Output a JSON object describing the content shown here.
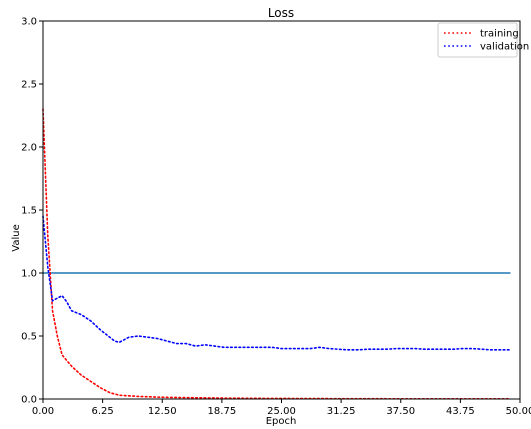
{
  "chart_data": {
    "type": "line",
    "title": "Loss",
    "xlabel": "Epoch",
    "ylabel": "Value",
    "xlim": [
      0,
      50
    ],
    "ylim": [
      0,
      3.0
    ],
    "xticks": [
      0,
      6.25,
      12.5,
      18.75,
      25,
      31.25,
      37.5,
      43.75,
      50
    ],
    "xtick_labels": [
      "0.00",
      "6.25",
      "12.50",
      "18.75",
      "25.00",
      "31.25",
      "37.50",
      "43.75",
      "50.00"
    ],
    "yticks": [
      0,
      0.5,
      1.0,
      1.5,
      2.0,
      2.5,
      3.0
    ],
    "ytick_labels": [
      "0.0",
      "0.5",
      "1.0",
      "1.5",
      "2.0",
      "2.5",
      "3.0"
    ],
    "grid": false,
    "legend_position": "top-right",
    "series": [
      {
        "name": "training",
        "color": "#ff0000",
        "style": "dotted",
        "x": [
          0,
          0.5,
          1,
          1.5,
          2,
          3,
          4,
          5,
          6,
          7,
          8,
          9,
          10,
          11,
          12,
          13,
          14,
          15,
          16,
          17,
          18,
          19,
          20,
          21,
          22,
          23,
          24,
          25,
          26,
          27,
          28,
          29,
          30,
          31,
          32,
          33,
          34,
          35,
          36,
          37,
          38,
          39,
          40,
          41,
          42,
          43,
          44,
          45,
          46,
          47,
          48,
          49
        ],
        "y": [
          2.3,
          1.3,
          0.7,
          0.5,
          0.35,
          0.26,
          0.19,
          0.14,
          0.09,
          0.05,
          0.03,
          0.025,
          0.02,
          0.018,
          0.015,
          0.013,
          0.012,
          0.011,
          0.01,
          0.009,
          0.008,
          0.007,
          0.007,
          0.006,
          0.006,
          0.005,
          0.005,
          0.005,
          0.004,
          0.004,
          0.004,
          0.004,
          0.003,
          0.003,
          0.003,
          0.003,
          0.003,
          0.003,
          0.002,
          0.002,
          0.002,
          0.002,
          0.002,
          0.002,
          0.002,
          0.002,
          0.002,
          0.002,
          0.002,
          0.002,
          0.002,
          0.002
        ]
      },
      {
        "name": "validation",
        "color": "#0000ff",
        "style": "dotted",
        "x": [
          0,
          0.5,
          1,
          1.5,
          2,
          2.5,
          3,
          4,
          5,
          6,
          7,
          7.5,
          8,
          9,
          10,
          11,
          12,
          13,
          14,
          15,
          16,
          17,
          18,
          19,
          20,
          21,
          22,
          23,
          24,
          25,
          26,
          27,
          28,
          29,
          30,
          31,
          32,
          33,
          34,
          35,
          36,
          37,
          38,
          39,
          40,
          41,
          42,
          43,
          44,
          45,
          46,
          47,
          48,
          49
        ],
        "y": [
          1.45,
          1.05,
          0.78,
          0.8,
          0.82,
          0.77,
          0.7,
          0.67,
          0.62,
          0.55,
          0.49,
          0.46,
          0.45,
          0.49,
          0.5,
          0.49,
          0.48,
          0.46,
          0.44,
          0.44,
          0.42,
          0.43,
          0.42,
          0.41,
          0.41,
          0.41,
          0.41,
          0.41,
          0.41,
          0.4,
          0.4,
          0.4,
          0.4,
          0.41,
          0.4,
          0.395,
          0.39,
          0.39,
          0.395,
          0.395,
          0.395,
          0.4,
          0.4,
          0.4,
          0.395,
          0.395,
          0.395,
          0.395,
          0.4,
          0.4,
          0.395,
          0.39,
          0.39,
          0.39
        ]
      }
    ],
    "reference_line": {
      "y": 1.0,
      "x_range": [
        0,
        49
      ],
      "color": "#1f77b4"
    }
  }
}
